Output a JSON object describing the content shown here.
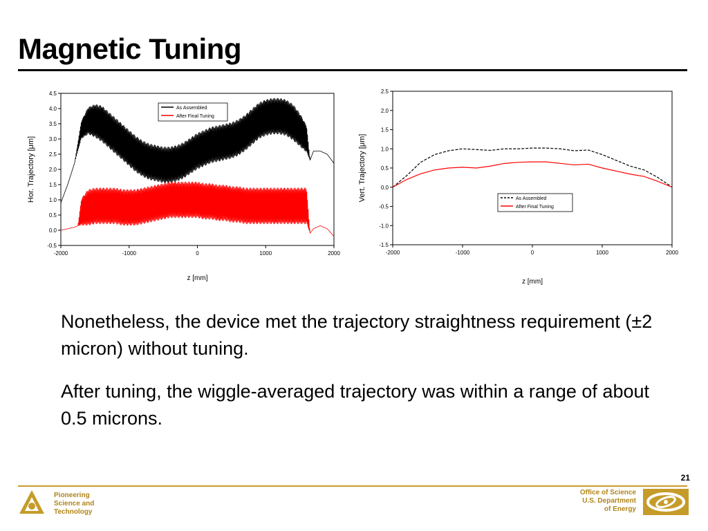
{
  "slide": {
    "title": "Magnetic Tuning",
    "paragraphs": [
      "Nonetheless, the device met the trajectory straightness requirement (±2 micron) without tuning.",
      "After tuning, the wiggle-averaged trajectory was within a range of about 0.5 microns."
    ],
    "page_number": "21"
  },
  "footer": {
    "left_lines": [
      "Pioneering",
      "Science and",
      "Technology"
    ],
    "right_lines": [
      "Office of Science",
      "U.S. Department",
      "of Energy"
    ],
    "logo_left_icon": "argonne-triangle-logo-icon",
    "logo_right_icon": "doe-swirl-logo-icon",
    "accent_color": "#c59c2a"
  },
  "chart_data": [
    {
      "type": "line",
      "xlabel": "z [mm]",
      "ylabel": "Hor. Trajectory [μm]",
      "xlim": [
        -2000,
        2000
      ],
      "ylim": [
        -0.5,
        4.5
      ],
      "xticks": [
        -2000,
        -1000,
        0,
        1000,
        2000
      ],
      "xtick_labels": [
        "-2000",
        "-1000",
        "0",
        "1000",
        "2000"
      ],
      "yticks": [
        -0.5,
        0.0,
        0.5,
        1.0,
        1.5,
        2.0,
        2.5,
        3.0,
        3.5,
        4.0,
        4.5
      ],
      "ytick_labels": [
        "-0.5",
        "0.0",
        "0.5",
        "1.0",
        "1.5",
        "2.0",
        "2.5",
        "3.0",
        "3.5",
        "4.0",
        "4.5"
      ],
      "legend_position": "top-center",
      "oscillation_range": [
        -1700,
        1650
      ],
      "series": [
        {
          "name": "As Assembled",
          "color": "#000000",
          "x": [
            -2000,
            -1900,
            -1800,
            -1700,
            -1600,
            -1500,
            -1400,
            -1300,
            -1200,
            -1100,
            -1000,
            -900,
            -800,
            -700,
            -600,
            -500,
            -400,
            -300,
            -200,
            -100,
            0,
            100,
            200,
            300,
            400,
            500,
            600,
            700,
            800,
            900,
            1000,
            1100,
            1200,
            1300,
            1400,
            1500,
            1600,
            1650,
            1700,
            1800,
            1900,
            2000
          ],
          "y": [
            0.9,
            1.5,
            2.2,
            3.3,
            3.6,
            3.6,
            3.5,
            3.3,
            3.1,
            2.9,
            2.7,
            2.5,
            2.35,
            2.25,
            2.2,
            2.15,
            2.15,
            2.2,
            2.3,
            2.45,
            2.6,
            2.7,
            2.8,
            2.85,
            2.9,
            2.95,
            3.05,
            3.2,
            3.4,
            3.6,
            3.7,
            3.75,
            3.75,
            3.7,
            3.55,
            3.3,
            3.0,
            2.3,
            2.6,
            2.6,
            2.5,
            2.2
          ],
          "wiggle_amplitude": [
            0,
            0,
            0,
            0.3,
            0.45,
            0.55,
            0.6,
            0.6,
            0.6,
            0.6,
            0.6,
            0.6,
            0.6,
            0.6,
            0.6,
            0.6,
            0.6,
            0.6,
            0.6,
            0.6,
            0.6,
            0.6,
            0.6,
            0.6,
            0.6,
            0.6,
            0.6,
            0.6,
            0.6,
            0.6,
            0.6,
            0.6,
            0.6,
            0.6,
            0.6,
            0.55,
            0.45,
            0,
            0,
            0,
            0,
            0
          ]
        },
        {
          "name": "After Final Tuning",
          "color": "#ff0000",
          "x": [
            -2000,
            -1900,
            -1800,
            -1750,
            -1700,
            -1600,
            -1500,
            -1400,
            -1300,
            -1200,
            -1100,
            -1000,
            -900,
            -800,
            -700,
            -600,
            -500,
            -400,
            -300,
            -200,
            -100,
            0,
            100,
            200,
            300,
            400,
            500,
            600,
            700,
            800,
            900,
            1000,
            1100,
            1200,
            1300,
            1400,
            1500,
            1600,
            1650,
            1700,
            1800,
            1900,
            2000
          ],
          "y": [
            0.0,
            0.05,
            0.1,
            0.15,
            0.6,
            0.75,
            0.8,
            0.8,
            0.8,
            0.8,
            0.75,
            0.75,
            0.75,
            0.8,
            0.85,
            0.9,
            0.95,
            1.0,
            1.0,
            1.0,
            1.0,
            1.0,
            0.95,
            0.95,
            0.9,
            0.9,
            0.85,
            0.85,
            0.8,
            0.8,
            0.8,
            0.8,
            0.8,
            0.8,
            0.8,
            0.8,
            0.8,
            0.8,
            -0.1,
            0.05,
            0.15,
            0.05,
            -0.2
          ],
          "wiggle_amplitude": [
            0,
            0,
            0,
            0,
            0.45,
            0.6,
            0.6,
            0.6,
            0.6,
            0.6,
            0.6,
            0.6,
            0.6,
            0.6,
            0.6,
            0.6,
            0.6,
            0.6,
            0.6,
            0.6,
            0.6,
            0.6,
            0.6,
            0.6,
            0.6,
            0.6,
            0.6,
            0.6,
            0.6,
            0.6,
            0.6,
            0.6,
            0.6,
            0.6,
            0.6,
            0.6,
            0.6,
            0.6,
            0,
            0,
            0,
            0,
            0
          ]
        }
      ]
    },
    {
      "type": "line",
      "xlabel": "z [mm]",
      "ylabel": "Vert. Trajectory [μm]",
      "xlim": [
        -2000,
        2000
      ],
      "ylim": [
        -1.5,
        2.5
      ],
      "xticks": [
        -2000,
        -1000,
        0,
        1000,
        2000
      ],
      "xtick_labels": [
        "-2000",
        "-1000",
        "0",
        "1000",
        "2000"
      ],
      "yticks": [
        -1.5,
        -1.0,
        -0.5,
        0.0,
        0.5,
        1.0,
        1.5,
        2.0,
        2.5
      ],
      "ytick_labels": [
        "-1.5",
        "-1.0",
        "-0.5",
        "0.0",
        "0.5",
        "1.0",
        "1.5",
        "2.0",
        "2.5"
      ],
      "legend_position": "bottom-center",
      "series": [
        {
          "name": "As Assembled",
          "color": "#000000",
          "dash": "dashed",
          "x": [
            -2000,
            -1800,
            -1600,
            -1400,
            -1200,
            -1000,
            -800,
            -600,
            -400,
            -200,
            0,
            200,
            400,
            600,
            800,
            1000,
            1200,
            1400,
            1600,
            1800,
            2000
          ],
          "y": [
            0.0,
            0.3,
            0.65,
            0.85,
            0.95,
            1.0,
            0.98,
            0.96,
            1.0,
            1.0,
            1.02,
            1.02,
            1.0,
            0.95,
            0.97,
            0.85,
            0.7,
            0.55,
            0.45,
            0.25,
            0.0
          ]
        },
        {
          "name": "After Final Tuning",
          "color": "#ff0000",
          "x": [
            -2000,
            -1800,
            -1600,
            -1400,
            -1200,
            -1000,
            -800,
            -600,
            -400,
            -200,
            0,
            200,
            400,
            600,
            800,
            1000,
            1200,
            1400,
            1600,
            1800,
            2000
          ],
          "y": [
            0.0,
            0.2,
            0.35,
            0.45,
            0.5,
            0.52,
            0.5,
            0.55,
            0.62,
            0.65,
            0.66,
            0.66,
            0.62,
            0.58,
            0.6,
            0.5,
            0.42,
            0.34,
            0.28,
            0.15,
            0.0
          ]
        }
      ]
    }
  ]
}
